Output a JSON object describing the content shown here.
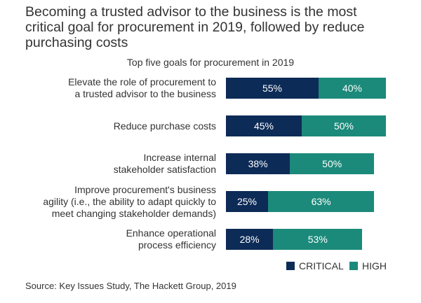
{
  "headline": "Becoming a trusted advisor to the business is the most critical goal for procurement in 2019, followed by reduce purchasing costs",
  "source": "Source: Key Issues Study, The Hackett Group, 2019",
  "colors": {
    "critical": "#0d2b57",
    "high": "#1b8a7a"
  },
  "chart_data": {
    "type": "bar",
    "orientation": "horizontal",
    "stacked": true,
    "title": "Top five goals for procurement in 2019",
    "categories": [
      [
        "Elevate the role of procurement to",
        "a trusted advisor to the business"
      ],
      [
        "Reduce purchase costs"
      ],
      [
        "Increase internal",
        "stakeholder satisfaction"
      ],
      [
        "Improve procurement's business",
        "agility (i.e., the ability to adapt quickly to",
        "meet changing stakeholder demands)"
      ],
      [
        "Enhance operational",
        "process efficiency"
      ]
    ],
    "series": [
      {
        "name": "CRITICAL",
        "values": [
          55,
          45,
          38,
          25,
          28
        ],
        "labels": [
          "55%",
          "45%",
          "38%",
          "25%",
          "28%"
        ]
      },
      {
        "name": "HIGH",
        "values": [
          40,
          50,
          50,
          63,
          53
        ],
        "labels": [
          "40%",
          "50%",
          "50%",
          "63%",
          "53%"
        ]
      }
    ],
    "xlim": [
      0,
      100
    ],
    "legend": "bottom-right",
    "grid": false
  }
}
